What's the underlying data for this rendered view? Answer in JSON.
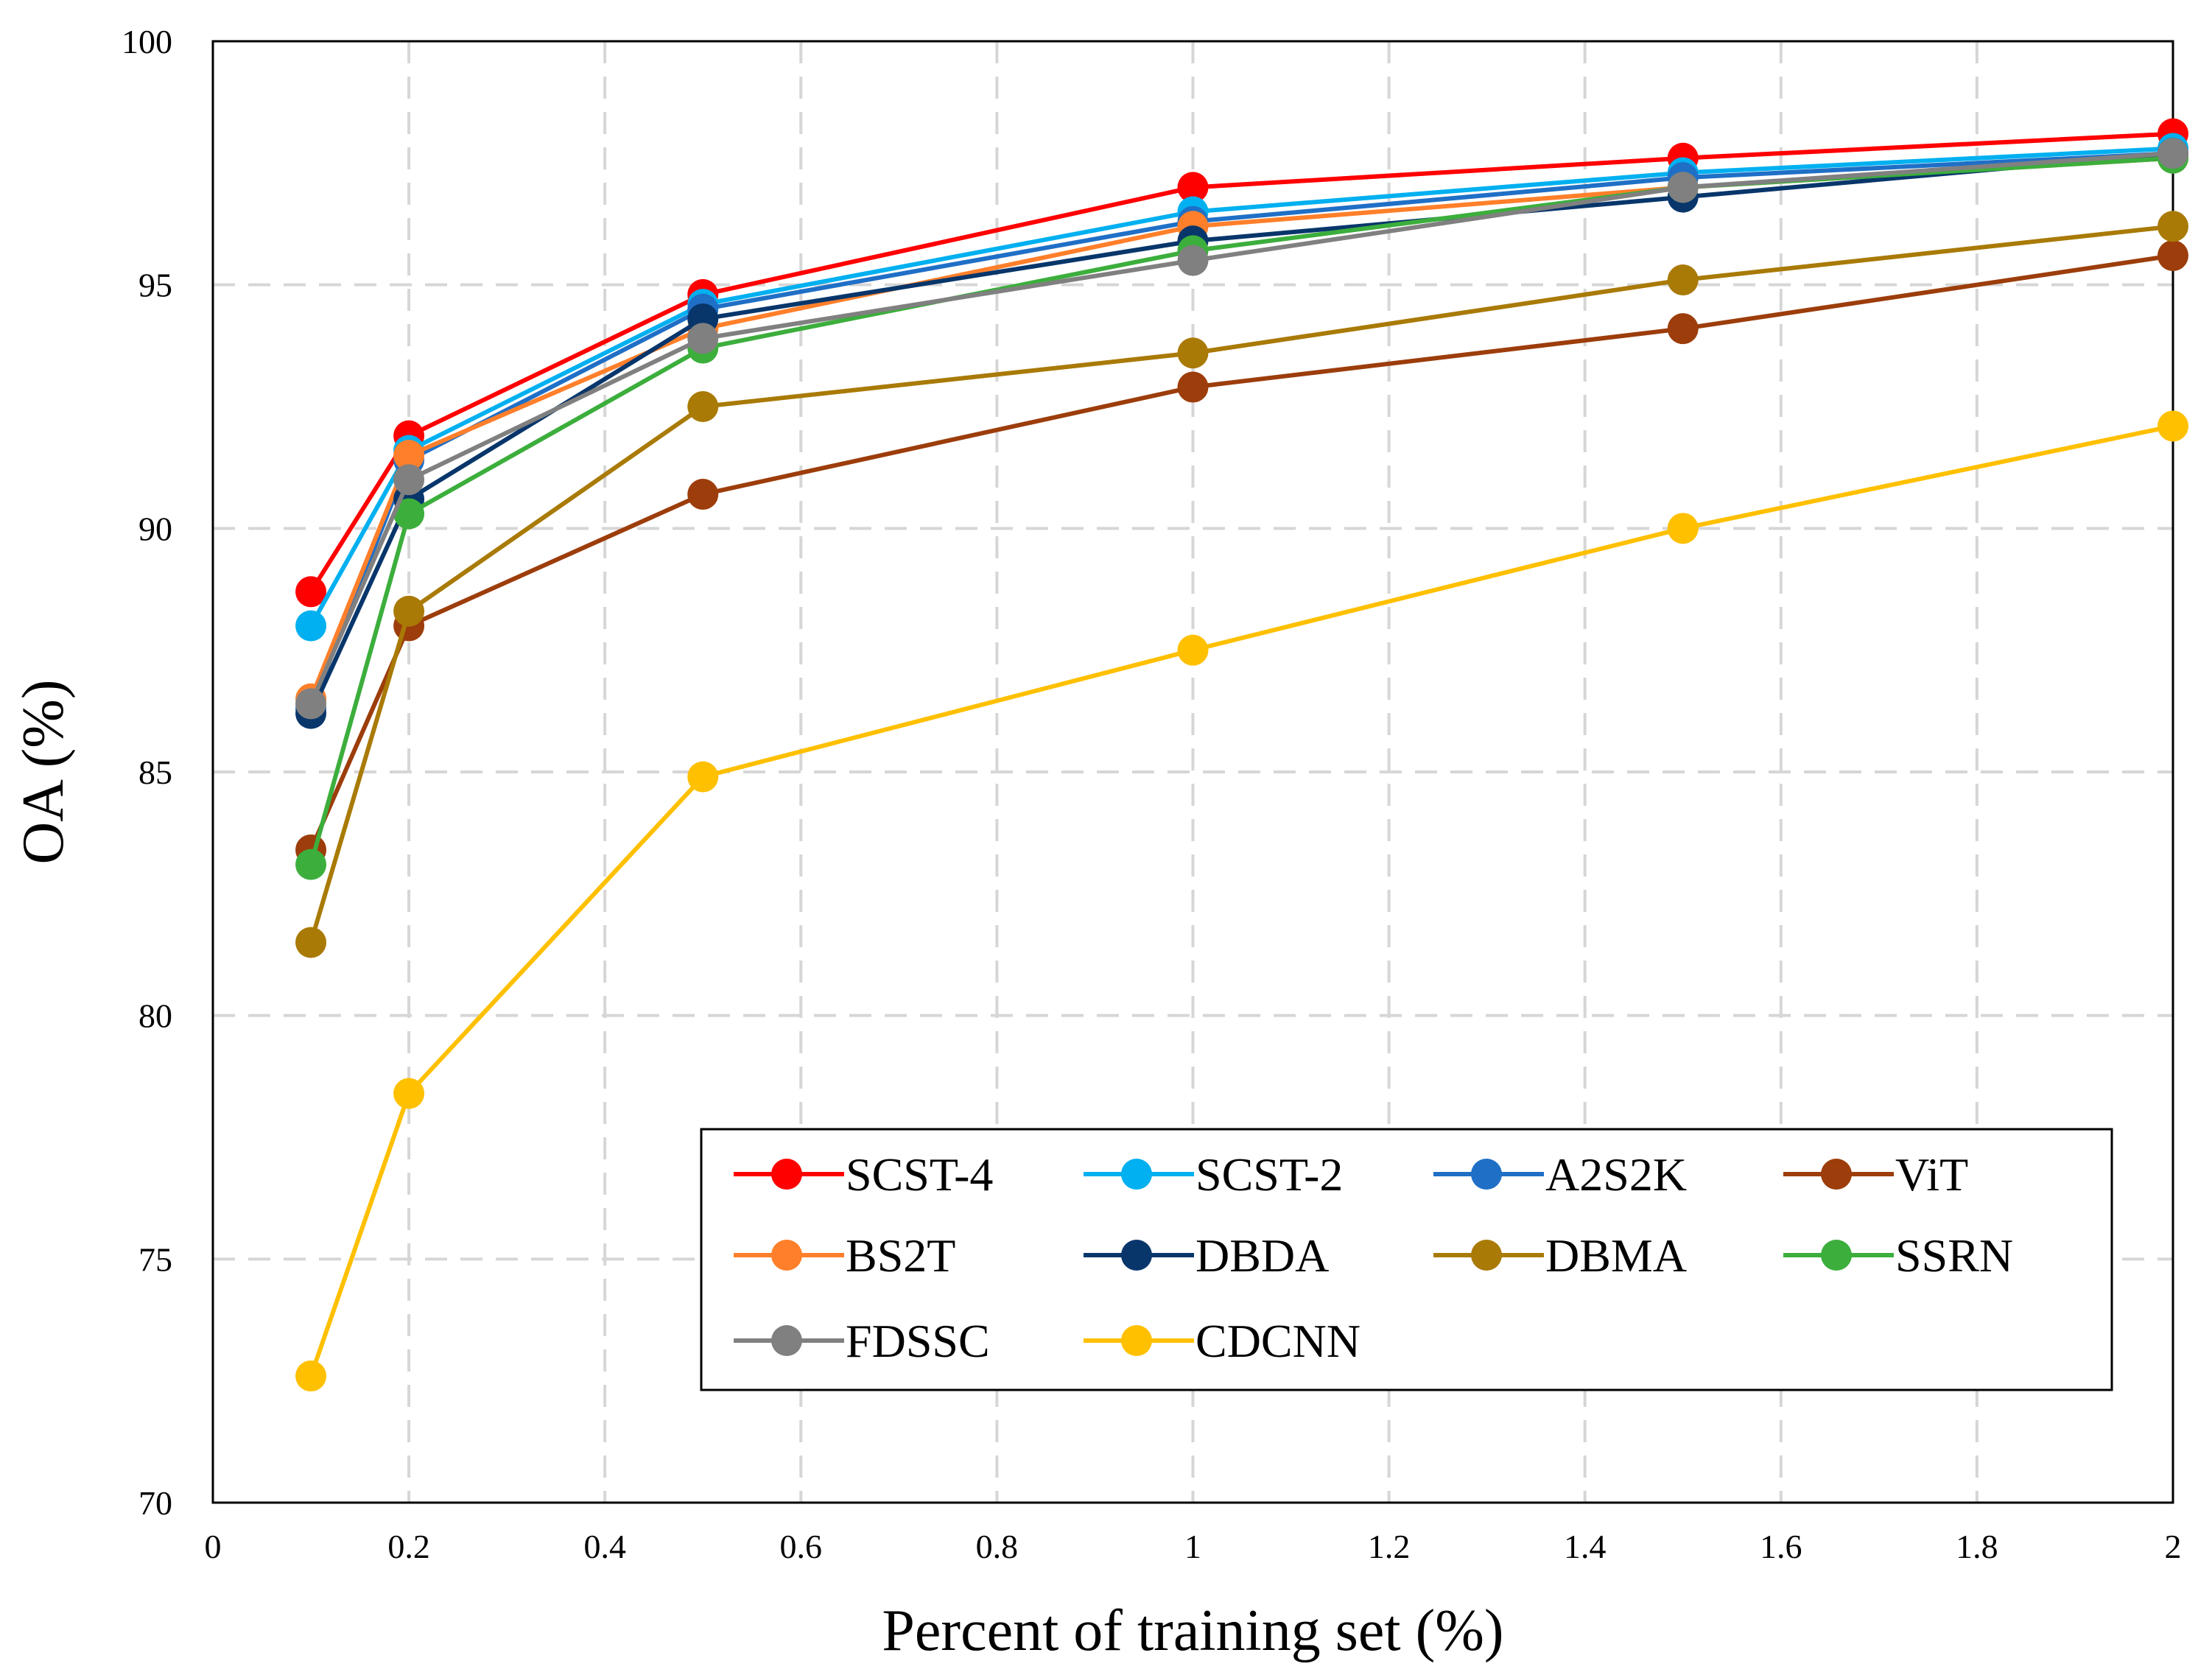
{
  "chart_data": {
    "type": "line",
    "title": "",
    "xlabel": "Percent of training set (%)",
    "ylabel": "OA (%)",
    "xlim": [
      0,
      2
    ],
    "ylim": [
      70,
      100
    ],
    "x_ticks": [
      0,
      0.2,
      0.4,
      0.6,
      0.8,
      1,
      1.2,
      1.4,
      1.6,
      1.8,
      2
    ],
    "x_tick_labels": [
      "0",
      "0.2",
      "0.4",
      "0.6",
      "0.8",
      "1",
      "1.2",
      "1.4",
      "1.6",
      "1.8",
      "2"
    ],
    "y_ticks": [
      70,
      75,
      80,
      85,
      90,
      95,
      100
    ],
    "y_tick_labels": [
      "70",
      "75",
      "80",
      "85",
      "90",
      "95",
      "100"
    ],
    "grid": "dashed",
    "legend_position": "bottom-right",
    "x": [
      0.1,
      0.2,
      0.5,
      1,
      1.5,
      2
    ],
    "series": [
      {
        "name": "SCST-4",
        "color": "#ff0000",
        "values": [
          88.7,
          91.9,
          94.8,
          97.0,
          97.6,
          98.1
        ]
      },
      {
        "name": "SCST-2",
        "color": "#00b0f0",
        "values": [
          88.0,
          91.6,
          94.6,
          96.5,
          97.3,
          97.8
        ]
      },
      {
        "name": "A2S2K",
        "color": "#1f6fc6",
        "values": [
          86.3,
          91.4,
          94.5,
          96.3,
          97.2,
          97.7
        ]
      },
      {
        "name": "ViT",
        "color": "#9c3d0b",
        "values": [
          83.4,
          88.0,
          90.7,
          92.9,
          94.1,
          95.6
        ]
      },
      {
        "name": "BS2T",
        "color": "#ff7f2a",
        "values": [
          86.5,
          91.5,
          94.1,
          96.2,
          97.0,
          97.6
        ]
      },
      {
        "name": "DBDA",
        "color": "#08366b",
        "values": [
          86.2,
          90.6,
          94.3,
          95.9,
          96.8,
          97.7
        ]
      },
      {
        "name": "DBMA",
        "color": "#a97a06",
        "values": [
          81.5,
          88.3,
          92.5,
          93.6,
          95.1,
          96.2
        ]
      },
      {
        "name": "SSRN",
        "color": "#3cae3c",
        "values": [
          83.1,
          90.3,
          93.7,
          95.7,
          97.0,
          97.6
        ]
      },
      {
        "name": "FDSSC",
        "color": "#808080",
        "values": [
          86.4,
          91.0,
          93.9,
          95.5,
          97.0,
          97.7
        ]
      },
      {
        "name": "CDCNN",
        "color": "#ffc000",
        "values": [
          72.6,
          78.4,
          84.9,
          87.5,
          90.0,
          92.1
        ]
      }
    ]
  }
}
